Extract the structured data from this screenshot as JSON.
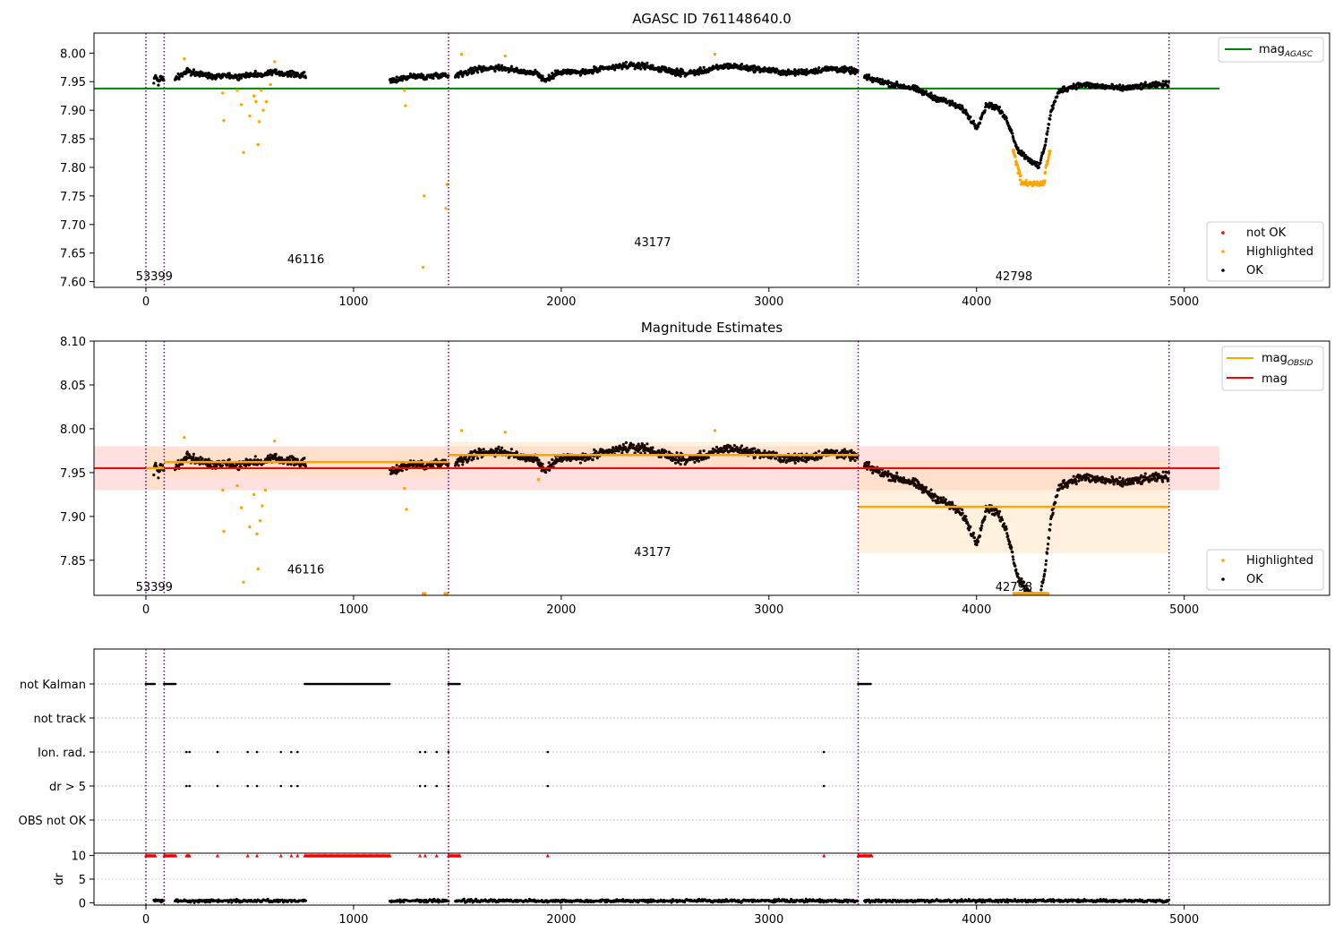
{
  "figure": {
    "colors": {
      "ok": "#000000",
      "highlighted": "#ffa500",
      "not_ok": "#ff0000",
      "agasc_line": "#008000",
      "mag_line": "#ff0000",
      "obsid_line": "#ffa500",
      "obsid_boundary": "#800080",
      "mag_band": "#ffcccc",
      "obsid_band": "#ffe0b3"
    }
  },
  "chart_data": [
    {
      "type": "scatter",
      "title": "AGASC ID 761148640.0",
      "xlabel": "",
      "ylabel": "",
      "xlim": [
        -250,
        5700
      ],
      "ylim": [
        7.59,
        8.035
      ],
      "xticks": [
        0,
        1000,
        2000,
        3000,
        4000,
        5000
      ],
      "yticks": [
        7.6,
        7.65,
        7.7,
        7.75,
        7.8,
        7.85,
        7.9,
        7.95,
        8.0
      ],
      "legend_upper": {
        "placement": "top-right",
        "entries": [
          "mag_AGASC"
        ]
      },
      "legend_lower": {
        "placement": "bottom-right",
        "entries": [
          "not OK",
          "Highlighted",
          "OK"
        ]
      },
      "mag_agasc": 7.938,
      "mag_agasc_x_range": [
        -250,
        5170
      ],
      "obsid_boundaries": [
        0,
        88,
        1457,
        3430,
        4927
      ],
      "obsid_labels": [
        {
          "text": "53399",
          "x": 40,
          "y": 7.61
        },
        {
          "text": "46116",
          "x": 770,
          "y": 7.64
        },
        {
          "text": "43177",
          "x": 2440,
          "y": 7.67
        },
        {
          "text": "42798",
          "x": 4180,
          "y": 7.61
        }
      ],
      "ok_segments": [
        {
          "x0": 38,
          "x1": 88,
          "points": [
            [
              38,
              7.952
            ],
            [
              50,
              7.96
            ],
            [
              60,
              7.948
            ],
            [
              70,
              7.958
            ],
            [
              80,
              7.955
            ],
            [
              88,
              7.95
            ]
          ]
        },
        {
          "x0": 140,
          "x1": 770,
          "points": [
            [
              140,
              7.955
            ],
            [
              200,
              7.968
            ],
            [
              260,
              7.963
            ],
            [
              320,
              7.96
            ],
            [
              380,
              7.962
            ],
            [
              440,
              7.958
            ],
            [
              500,
              7.963
            ],
            [
              560,
              7.962
            ],
            [
              620,
              7.966
            ],
            [
              680,
              7.964
            ],
            [
              740,
              7.962
            ],
            [
              770,
              7.96
            ]
          ]
        },
        {
          "x0": 1175,
          "x1": 1457,
          "points": [
            [
              1175,
              7.95
            ],
            [
              1230,
              7.956
            ],
            [
              1290,
              7.96
            ],
            [
              1350,
              7.958
            ],
            [
              1410,
              7.962
            ],
            [
              1457,
              7.96
            ]
          ]
        },
        {
          "x0": 1490,
          "x1": 3430,
          "points": [
            [
              1490,
              7.962
            ],
            [
              1600,
              7.972
            ],
            [
              1700,
              7.975
            ],
            [
              1800,
              7.968
            ],
            [
              1880,
              7.966
            ],
            [
              1920,
              7.952
            ],
            [
              2000,
              7.968
            ],
            [
              2100,
              7.966
            ],
            [
              2200,
              7.972
            ],
            [
              2300,
              7.978
            ],
            [
              2400,
              7.978
            ],
            [
              2500,
              7.97
            ],
            [
              2600,
              7.964
            ],
            [
              2700,
              7.97
            ],
            [
              2800,
              7.978
            ],
            [
              2900,
              7.974
            ],
            [
              3000,
              7.97
            ],
            [
              3100,
              7.965
            ],
            [
              3200,
              7.968
            ],
            [
              3300,
              7.973
            ],
            [
              3430,
              7.968
            ]
          ]
        },
        {
          "x0": 3460,
          "x1": 4927,
          "points": [
            [
              3460,
              7.958
            ],
            [
              3520,
              7.952
            ],
            [
              3600,
              7.945
            ],
            [
              3700,
              7.938
            ],
            [
              3800,
              7.922
            ],
            [
              3880,
              7.912
            ],
            [
              3940,
              7.9
            ],
            [
              4000,
              7.87
            ],
            [
              4050,
              7.91
            ],
            [
              4100,
              7.905
            ],
            [
              4150,
              7.88
            ],
            [
              4180,
              7.85
            ],
            [
              4200,
              7.83
            ],
            [
              4300,
              7.8
            ],
            [
              4330,
              7.84
            ],
            [
              4360,
              7.9
            ],
            [
              4400,
              7.935
            ],
            [
              4500,
              7.945
            ],
            [
              4600,
              7.942
            ],
            [
              4700,
              7.938
            ],
            [
              4800,
              7.942
            ],
            [
              4927,
              7.946
            ]
          ]
        }
      ],
      "highlighted_points": [
        [
          185,
          7.99
        ],
        [
          370,
          7.93
        ],
        [
          375,
          7.882
        ],
        [
          440,
          7.935
        ],
        [
          460,
          7.91
        ],
        [
          470,
          7.826
        ],
        [
          500,
          7.89
        ],
        [
          520,
          7.925
        ],
        [
          530,
          7.915
        ],
        [
          540,
          7.84
        ],
        [
          545,
          7.88
        ],
        [
          555,
          7.935
        ],
        [
          565,
          7.9
        ],
        [
          580,
          7.915
        ],
        [
          600,
          7.945
        ],
        [
          620,
          7.985
        ],
        [
          1245,
          7.935
        ],
        [
          1250,
          7.908
        ],
        [
          1335,
          7.625
        ],
        [
          1340,
          7.75
        ],
        [
          1445,
          7.728
        ],
        [
          1450,
          7.77
        ],
        [
          1520,
          7.998
        ],
        [
          1730,
          7.995
        ],
        [
          2740,
          7.998
        ],
        [
          4180,
          7.83
        ],
        [
          4190,
          7.805
        ],
        [
          4200,
          7.79
        ],
        [
          4210,
          7.778
        ],
        [
          4230,
          7.772
        ],
        [
          4250,
          7.77
        ],
        [
          4270,
          7.768
        ],
        [
          4290,
          7.77
        ],
        [
          4310,
          7.775
        ],
        [
          4330,
          7.79
        ],
        [
          4340,
          7.81
        ],
        [
          4350,
          7.828
        ]
      ]
    },
    {
      "type": "scatter",
      "title": "Magnitude Estimates",
      "xlabel": "",
      "ylabel": "",
      "xlim": [
        -250,
        5700
      ],
      "ylim": [
        7.81,
        8.1
      ],
      "xticks": [
        0,
        1000,
        2000,
        3000,
        4000,
        5000
      ],
      "yticks": [
        7.85,
        7.9,
        7.95,
        8.0,
        8.05,
        8.1
      ],
      "legend_upper": {
        "placement": "top-right",
        "entries": [
          "mag_OBSID",
          "mag"
        ]
      },
      "legend_lower": {
        "placement": "bottom-right",
        "entries": [
          "Highlighted",
          "OK"
        ]
      },
      "mag": 7.955,
      "mag_band": [
        7.93,
        7.98
      ],
      "mag_x_range": [
        -250,
        5170
      ],
      "obsid_mags": [
        {
          "x0": 0,
          "x1": 88,
          "mag": 7.955,
          "band": [
            7.93,
            7.98
          ]
        },
        {
          "x0": 88,
          "x1": 1457,
          "mag": 7.962,
          "band": [
            7.945,
            7.978
          ]
        },
        {
          "x0": 1457,
          "x1": 3430,
          "mag": 7.97,
          "band": [
            7.955,
            7.985
          ]
        },
        {
          "x0": 3430,
          "x1": 4927,
          "mag": 7.911,
          "band": [
            7.858,
            7.965
          ]
        }
      ],
      "obsid_boundaries": [
        0,
        88,
        1457,
        3430,
        4927
      ],
      "obsid_labels": [
        {
          "text": "53399",
          "x": 40,
          "y": 7.82
        },
        {
          "text": "46116",
          "x": 770,
          "y": 7.84
        },
        {
          "text": "43177",
          "x": 2440,
          "y": 7.86
        },
        {
          "text": "42798",
          "x": 4180,
          "y": 7.82
        }
      ],
      "highlighted_points": [
        [
          185,
          7.99
        ],
        [
          370,
          7.93
        ],
        [
          375,
          7.883
        ],
        [
          440,
          7.935
        ],
        [
          460,
          7.91
        ],
        [
          470,
          7.825
        ],
        [
          500,
          7.888
        ],
        [
          520,
          7.925
        ],
        [
          535,
          7.88
        ],
        [
          540,
          7.84
        ],
        [
          550,
          7.895
        ],
        [
          560,
          7.912
        ],
        [
          575,
          7.93
        ],
        [
          620,
          7.986
        ],
        [
          1245,
          7.932
        ],
        [
          1255,
          7.908
        ],
        [
          1335,
          7.812
        ],
        [
          1345,
          7.812
        ],
        [
          1440,
          7.812
        ],
        [
          1450,
          7.812
        ],
        [
          1520,
          7.998
        ],
        [
          1730,
          7.996
        ],
        [
          1890,
          7.942
        ],
        [
          2740,
          7.998
        ],
        [
          4180,
          7.812
        ],
        [
          4220,
          7.812
        ],
        [
          4260,
          7.812
        ],
        [
          4300,
          7.812
        ],
        [
          4340,
          7.812
        ]
      ]
    },
    {
      "type": "scatter",
      "title": "",
      "xlabel": "",
      "ylabel": "dr",
      "xlim": [
        -250,
        5700
      ],
      "xticks": [
        0,
        1000,
        2000,
        3000,
        4000,
        5000
      ],
      "flag_categories": [
        "not Kalman",
        "not track",
        "Ion. rad.",
        "dr > 5",
        "OBS not OK"
      ],
      "dr_ylim": [
        -0.5,
        10.5
      ],
      "dr_yticks": [
        0,
        5,
        10
      ],
      "flags": {
        "not Kalman": [
          [
            0,
            45
          ],
          [
            88,
            145
          ],
          [
            765,
            1175
          ],
          [
            1457,
            1515
          ],
          [
            3430,
            3495
          ]
        ],
        "not track": [],
        "Ion. rad.": [
          195,
          210,
          345,
          490,
          535,
          650,
          700,
          730,
          1320,
          1345,
          1400,
          1457,
          1935,
          3265
        ],
        "dr > 5": [
          195,
          210,
          345,
          490,
          535,
          650,
          700,
          730,
          1320,
          1345,
          1400,
          1457,
          1935,
          3265
        ],
        "OBS not OK": []
      },
      "dr_capped_points": [
        [
          0,
          45
        ],
        [
          88,
          145
        ],
        [
          195,
          210
        ],
        [
          345,
          345
        ],
        [
          490,
          490
        ],
        [
          535,
          535
        ],
        [
          650,
          650
        ],
        [
          700,
          700
        ],
        [
          730,
          730
        ],
        [
          765,
          1175
        ],
        [
          1320,
          1320
        ],
        [
          1345,
          1345
        ],
        [
          1400,
          1400
        ],
        [
          1457,
          1515
        ],
        [
          1935,
          1935
        ],
        [
          3265,
          3265
        ],
        [
          3430,
          3495
        ]
      ],
      "dr_ok_segments": [
        [
          38,
          88
        ],
        [
          140,
          770
        ],
        [
          1175,
          1457
        ],
        [
          1490,
          3430
        ],
        [
          3460,
          4927
        ]
      ],
      "dr_ok_typical": 0.4
    }
  ],
  "legend_labels": {
    "mag_agasc": "mag",
    "mag_agasc_sub": "AGASC",
    "mag_obsid": "mag",
    "mag_obsid_sub": "OBSID",
    "mag": "mag",
    "not_ok": "not OK",
    "highlighted": "Highlighted",
    "ok": "OK"
  }
}
